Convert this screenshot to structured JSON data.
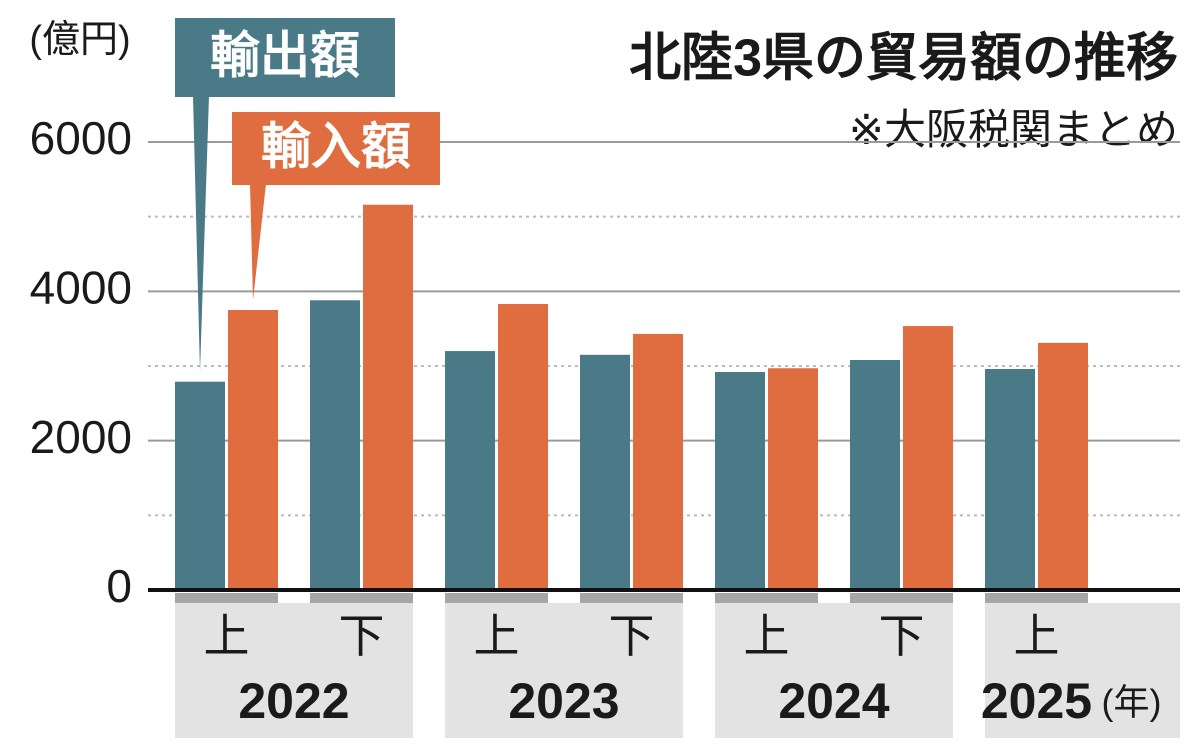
{
  "chart_data": {
    "type": "bar",
    "title": "北陸3県の貿易額の推移",
    "note": "※大阪税関まとめ",
    "y_label": "(億円)",
    "x_unit": "(年)",
    "groups": [
      {
        "name": "2022",
        "categories": [
          "上",
          "下"
        ]
      },
      {
        "name": "2023",
        "categories": [
          "上",
          "下"
        ]
      },
      {
        "name": "2024",
        "categories": [
          "上",
          "下"
        ]
      },
      {
        "name": "2025",
        "categories": [
          "上"
        ]
      }
    ],
    "series": [
      {
        "name": "輸出額",
        "color": "#4a7a87",
        "values": [
          2790,
          3880,
          3200,
          3150,
          2920,
          3080,
          2960
        ]
      },
      {
        "name": "輸入額",
        "color": "#e06d40",
        "values": [
          3750,
          5160,
          3830,
          3430,
          2970,
          3535,
          3310
        ]
      }
    ],
    "ylim": [
      0,
      6000
    ],
    "yticks": [
      0,
      2000,
      4000,
      6000
    ],
    "minor_yticks": [
      1000,
      3000,
      5000
    ],
    "grid": true
  }
}
